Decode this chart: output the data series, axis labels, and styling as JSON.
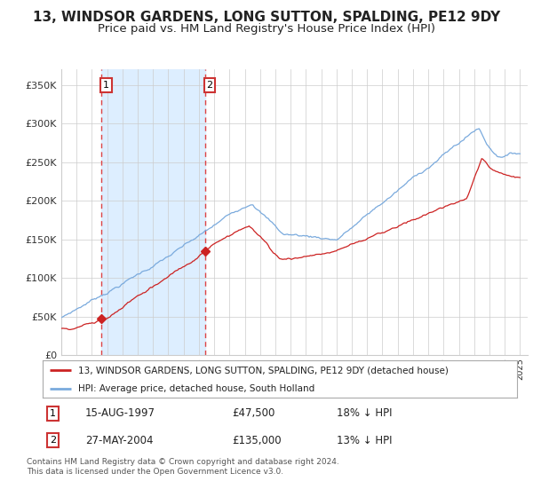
{
  "title": "13, WINDSOR GARDENS, LONG SUTTON, SPALDING, PE12 9DY",
  "subtitle": "Price paid vs. HM Land Registry's House Price Index (HPI)",
  "xlim_start": 1995.0,
  "xlim_end": 2025.5,
  "ylim": [
    0,
    370000
  ],
  "yticks": [
    0,
    50000,
    100000,
    150000,
    200000,
    250000,
    300000,
    350000
  ],
  "ytick_labels": [
    "£0",
    "£50K",
    "£100K",
    "£150K",
    "£200K",
    "£250K",
    "£300K",
    "£350K"
  ],
  "purchase1_date": 1997.62,
  "purchase1_price": 47500,
  "purchase1_label": "1",
  "purchase1_text": "15-AUG-1997",
  "purchase1_amount": "£47,500",
  "purchase1_hpi": "18% ↓ HPI",
  "purchase2_date": 2004.41,
  "purchase2_price": 135000,
  "purchase2_label": "2",
  "purchase2_text": "27-MAY-2004",
  "purchase2_amount": "£135,000",
  "purchase2_hpi": "13% ↓ HPI",
  "shaded_start": 1997.62,
  "shaded_end": 2004.41,
  "line1_color": "#cc2222",
  "line2_color": "#7aaadd",
  "point_color": "#cc2222",
  "shaded_color": "#ddeeff",
  "vline1_color": "#dd4444",
  "vline2_color": "#dd4444",
  "background_color": "#ffffff",
  "grid_color": "#cccccc",
  "legend_label1": "13, WINDSOR GARDENS, LONG SUTTON, SPALDING, PE12 9DY (detached house)",
  "legend_label2": "HPI: Average price, detached house, South Holland",
  "footnote": "Contains HM Land Registry data © Crown copyright and database right 2024.\nThis data is licensed under the Open Government Licence v3.0.",
  "title_fontsize": 11,
  "subtitle_fontsize": 9.5
}
